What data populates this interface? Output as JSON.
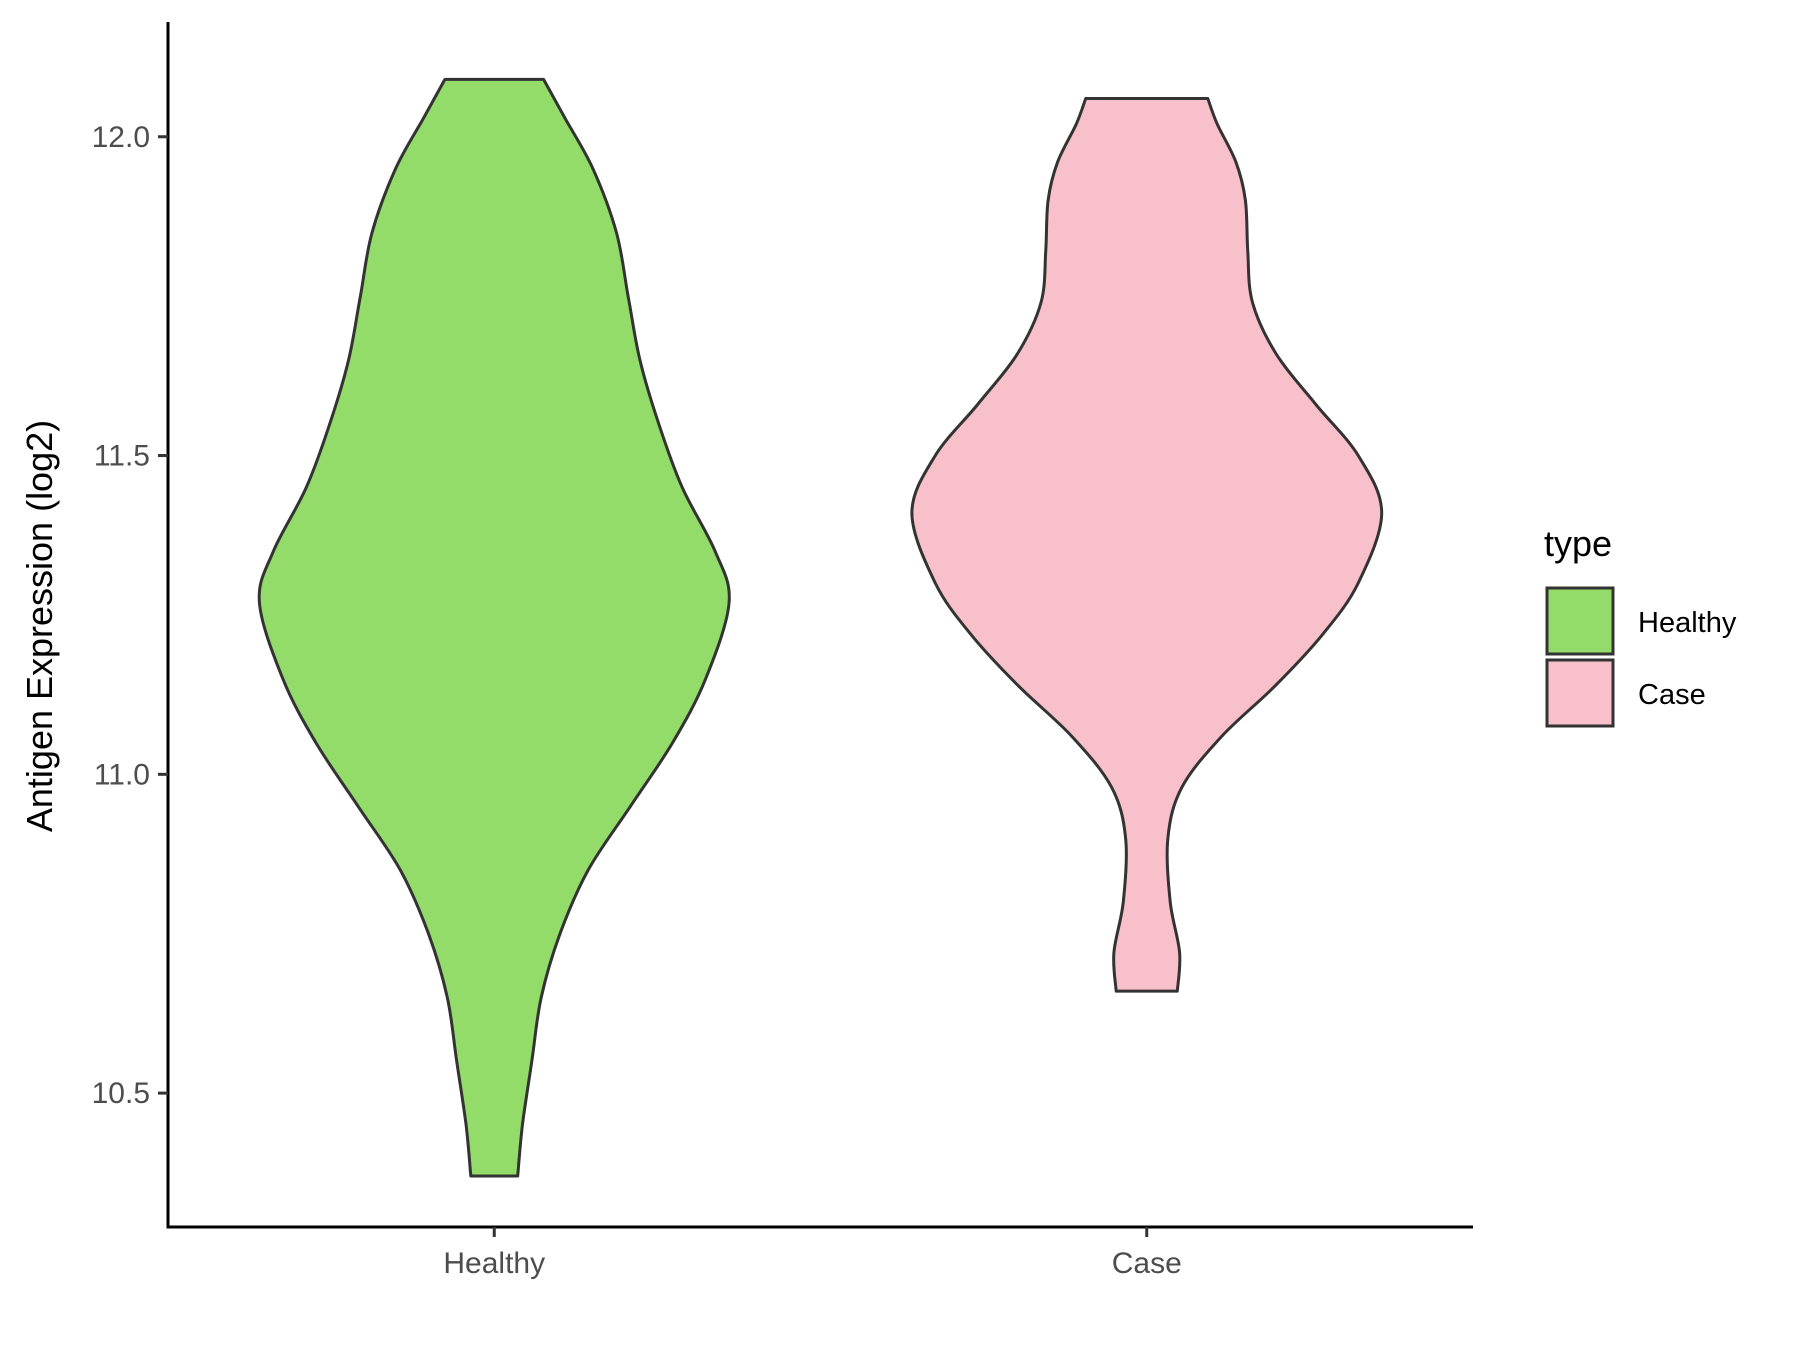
{
  "chart_data": {
    "type": "violin",
    "title": "",
    "xlabel": "",
    "ylabel": "Antigen Expression (log2)",
    "ylim": [
      10.29,
      12.18
    ],
    "yticks": [
      "10.5",
      "11.0",
      "11.5",
      "12.0"
    ],
    "categories": [
      "Healthy",
      "Case"
    ],
    "legend": {
      "title": "type",
      "position": "right",
      "entries": [
        {
          "label": "Healthy",
          "color": "#93dc6a"
        },
        {
          "label": "Case",
          "color": "#f8c0cb"
        }
      ]
    },
    "grid": false,
    "outline_color": "#333333",
    "series": [
      {
        "name": "Healthy",
        "color": "#93dc6a",
        "min": 10.37,
        "max": 12.09,
        "profile": [
          [
            10.37,
            0.1
          ],
          [
            10.45,
            0.12
          ],
          [
            10.55,
            0.16
          ],
          [
            10.65,
            0.2
          ],
          [
            10.75,
            0.28
          ],
          [
            10.85,
            0.4
          ],
          [
            10.95,
            0.58
          ],
          [
            11.05,
            0.76
          ],
          [
            11.15,
            0.9
          ],
          [
            11.27,
            1.0
          ],
          [
            11.35,
            0.94
          ],
          [
            11.45,
            0.8
          ],
          [
            11.55,
            0.7
          ],
          [
            11.65,
            0.62
          ],
          [
            11.75,
            0.57
          ],
          [
            11.85,
            0.52
          ],
          [
            11.95,
            0.42
          ],
          [
            12.03,
            0.3
          ],
          [
            12.09,
            0.21
          ]
        ]
      },
      {
        "name": "Case",
        "color": "#f8c0cb",
        "min": 10.66,
        "max": 12.06,
        "profile": [
          [
            10.66,
            0.13
          ],
          [
            10.72,
            0.14
          ],
          [
            10.8,
            0.1
          ],
          [
            10.9,
            0.09
          ],
          [
            10.98,
            0.15
          ],
          [
            11.06,
            0.32
          ],
          [
            11.14,
            0.55
          ],
          [
            11.22,
            0.75
          ],
          [
            11.3,
            0.9
          ],
          [
            11.41,
            1.0
          ],
          [
            11.5,
            0.9
          ],
          [
            11.58,
            0.72
          ],
          [
            11.66,
            0.55
          ],
          [
            11.74,
            0.45
          ],
          [
            11.82,
            0.43
          ],
          [
            11.9,
            0.42
          ],
          [
            11.96,
            0.38
          ],
          [
            12.02,
            0.3
          ],
          [
            12.06,
            0.26
          ]
        ]
      }
    ]
  }
}
